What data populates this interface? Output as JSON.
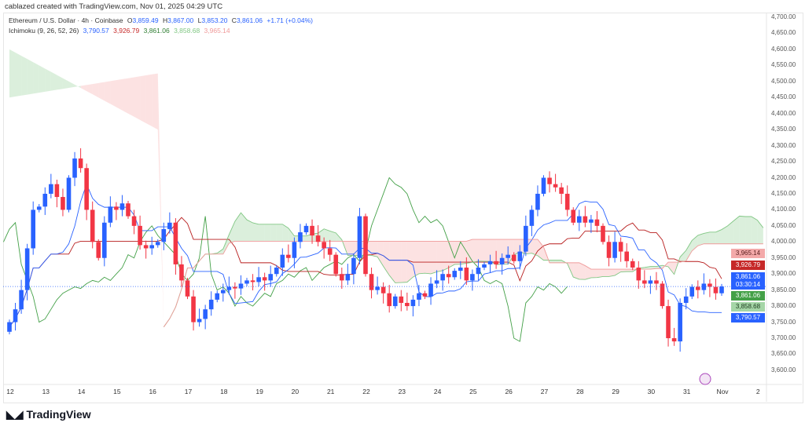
{
  "credit": "cablazed created with TradingView.com, Nov 01, 2025 04:29 UTC",
  "legend": {
    "symbol": "Ethereum / U.S. Dollar · 4h · Coinbase",
    "o_label": "O",
    "o": "3,859.49",
    "h_label": "H",
    "h": "3,867.00",
    "l_label": "L",
    "l": "3,853.20",
    "c_label": "C",
    "c": "3,861.06",
    "change": "+1.71 (+0.04%)",
    "indicator": "Ichimoku (9, 26, 52, 26)",
    "ind_values": [
      "3,790.57",
      "3,926.79",
      "3,861.06",
      "3,858.68",
      "3,965.14"
    ]
  },
  "price_axis": [
    "4,700.00",
    "4,650.00",
    "4,600.00",
    "4,550.00",
    "4,500.00",
    "4,450.00",
    "4,400.00",
    "4,350.00",
    "4,300.00",
    "4,250.00",
    "4,200.00",
    "4,150.00",
    "4,100.00",
    "4,050.00",
    "4,000.00",
    "3,950.00",
    "3,900.00",
    "3,850.00",
    "3,800.00",
    "3,750.00",
    "3,700.00",
    "3,650.00",
    "3,600.00"
  ],
  "tags": [
    {
      "text": "3,965.14",
      "bg": "#f3a9a9",
      "fg": "#5a1f1f",
      "price": 3965.14
    },
    {
      "text": "3,926.79",
      "bg": "#c62828",
      "fg": "#fff",
      "price": 3926.79
    },
    {
      "text": "3,861.06",
      "sub": "03:30:14",
      "bg": "#2962ff",
      "fg": "#fff",
      "price": 3878
    },
    {
      "text": "3,861.06",
      "bg": "#43a047",
      "fg": "#fff",
      "price": 3861.06
    },
    {
      "text": "3,858.68",
      "bg": "#a5d6a7",
      "fg": "#1b3a1c",
      "price": 3843
    },
    {
      "text": "3,790.57",
      "bg": "#2962ff",
      "fg": "#fff",
      "price": 3790.57
    }
  ],
  "date_axis": [
    "12",
    "13",
    "14",
    "15",
    "16",
    "17",
    "18",
    "19",
    "20",
    "21",
    "22",
    "23",
    "24",
    "25",
    "26",
    "27",
    "28",
    "29",
    "30",
    "31",
    "Nov",
    "2"
  ],
  "colors": {
    "up": "#2962ff",
    "down": "#f23645",
    "tenkan": "#2962ff",
    "kijun": "#b71c1c",
    "lagging": "#43a047",
    "cloud_up": "#a5d6a7",
    "cloud_down": "#f7b6b6"
  },
  "closes": [
    3750,
    3790,
    3850,
    3980,
    4100,
    4110,
    4150,
    4180,
    4140,
    4100,
    4200,
    4260,
    4230,
    4100,
    4000,
    3950,
    4060,
    4110,
    4100,
    4120,
    4080,
    4050,
    3990,
    3980,
    3990,
    4000,
    4040,
    4060,
    3930,
    3880,
    3830,
    3750,
    3760,
    3790,
    3820,
    3840,
    3850,
    3860,
    3855,
    3870,
    3880,
    3875,
    3890,
    3880,
    3900,
    3920,
    3960,
    3950,
    4000,
    4030,
    4050,
    4020,
    4000,
    3980,
    3960,
    3900,
    3880,
    3900,
    3950,
    4080,
    3900,
    3850,
    3860,
    3840,
    3800,
    3830,
    3810,
    3800,
    3820,
    3840,
    3830,
    3870,
    3880,
    3900,
    3890,
    3910,
    3920,
    3880,
    3900,
    3920,
    3930,
    3940,
    3930,
    3950,
    3960,
    3940,
    3970,
    4050,
    4100,
    4150,
    4200,
    4180,
    4170,
    4150,
    4100,
    4060,
    4080,
    4060,
    4070,
    4050,
    4000,
    3950,
    4000,
    3970,
    3940,
    3920,
    3880,
    3870,
    3880,
    3870,
    3800,
    3700,
    3690,
    3810,
    3830,
    3860,
    3850,
    3870,
    3860,
    3840,
    3861
  ],
  "logo": "TradingView"
}
